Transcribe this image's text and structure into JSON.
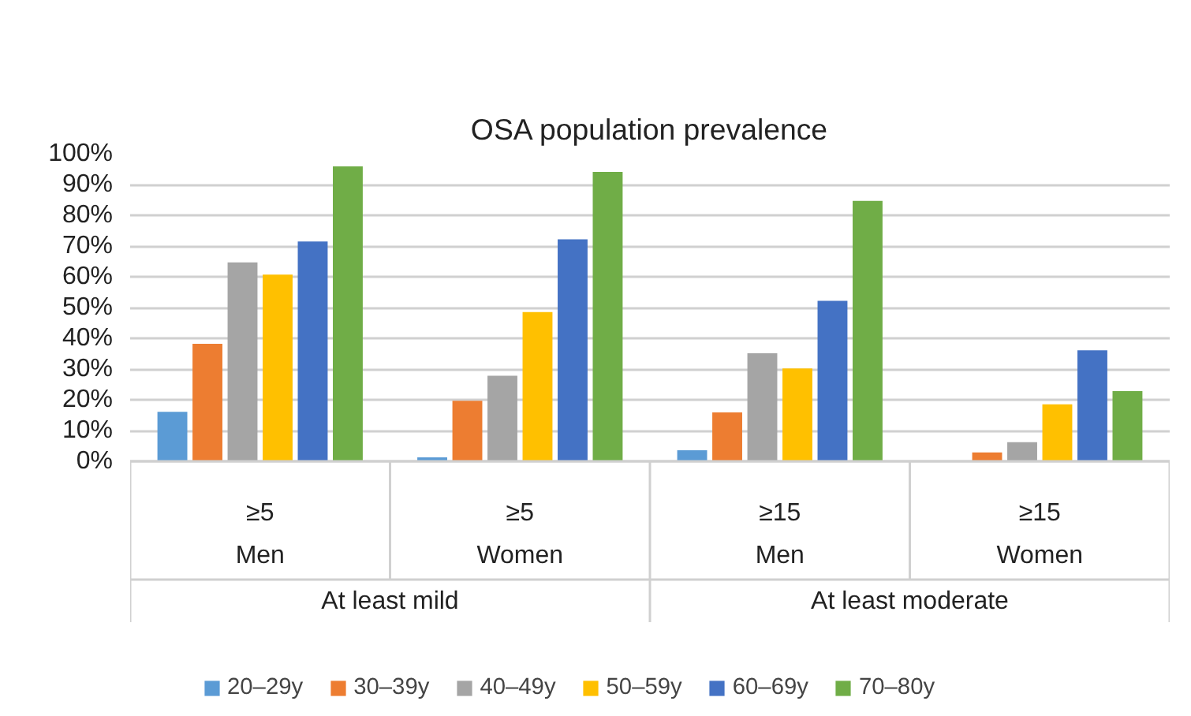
{
  "chart_data": {
    "type": "bar",
    "title": "OSA population prevalence",
    "categories": [
      "≥5\nMen",
      "≥5\nWomen",
      "≥15\nMen",
      "≥15\nWomen"
    ],
    "annotations": [
      "At least mild",
      "At least moderate"
    ],
    "series": [
      {
        "name": "20–29y",
        "color": "#5b9bd5",
        "values": [
          16.1,
          1.3,
          3.6,
          0
        ]
      },
      {
        "name": "30–39y",
        "color": "#ed7d31",
        "values": [
          38.2,
          19.7,
          15.9,
          2.9
        ]
      },
      {
        "name": "40–49y",
        "color": "#a5a5a5",
        "values": [
          64.7,
          27.8,
          35.1,
          6.2
        ]
      },
      {
        "name": "50–59y",
        "color": "#ffc000",
        "values": [
          60.7,
          48.5,
          30.2,
          18.5
        ]
      },
      {
        "name": "60–69y",
        "color": "#4472c4",
        "values": [
          71.5,
          72.2,
          52.2,
          36.1
        ]
      },
      {
        "name": "70–80y",
        "color": "#70ad47",
        "values": [
          95.9,
          94.1,
          84.7,
          22.8
        ]
      }
    ],
    "ylim": [
      0,
      100
    ],
    "yticks": [
      {
        "value": 0,
        "label": "0%"
      },
      {
        "value": 10,
        "label": "10%"
      },
      {
        "value": 20,
        "label": "20%"
      },
      {
        "value": 30,
        "label": "30%"
      },
      {
        "value": 40,
        "label": "40%"
      },
      {
        "value": 50,
        "label": "50%"
      },
      {
        "value": 60,
        "label": "60%"
      },
      {
        "value": 70,
        "label": "70%"
      },
      {
        "value": 80,
        "label": "80%"
      },
      {
        "value": 90,
        "label": "90%"
      },
      {
        "value": 100,
        "label": "100%"
      }
    ],
    "grid": "y",
    "legend": "bottom"
  }
}
